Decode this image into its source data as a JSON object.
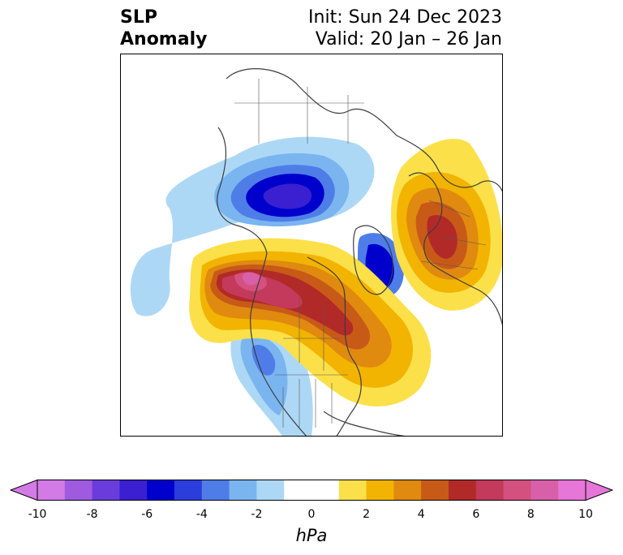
{
  "title": {
    "variable_line1": "SLP",
    "variable_line2": "Anomaly",
    "init": "Init: Sun 24 Dec 2023",
    "valid": "Valid: 20 Jan – 26 Jan"
  },
  "map": {
    "projection": "north-polar stereographic",
    "field": "sea level pressure anomaly",
    "colors": {
      "neg_1": "#add8f5",
      "neg_2": "#7ab5f0",
      "neg_3": "#4f7de8",
      "neg_4": "#2b3ddb",
      "neg_5": "#0000cd",
      "neg_6": "#3a20d0",
      "pos_1": "#fbe04a",
      "pos_2": "#f2b400",
      "pos_3": "#e08a10",
      "pos_4": "#c85a18",
      "pos_5": "#b22a28",
      "pos_6": "#c43a5c",
      "pos_7": "#d4507e",
      "pos_8": "#d860a8",
      "coast": "#3c3c3c"
    }
  },
  "colorbar": {
    "label": "hPa",
    "ticks": [
      "-10",
      "-8",
      "-6",
      "-4",
      "-2",
      "0",
      "2",
      "4",
      "6",
      "8",
      "10"
    ],
    "tick_values": [
      -10,
      -8,
      -6,
      -4,
      -2,
      0,
      2,
      4,
      6,
      8,
      10
    ],
    "bins": [
      {
        "from": -10,
        "to": -9,
        "color": "#d27ae6"
      },
      {
        "from": -9,
        "to": -8,
        "color": "#a05ae0"
      },
      {
        "from": -8,
        "to": -7,
        "color": "#6a3cdc"
      },
      {
        "from": -7,
        "to": -6,
        "color": "#3a20d0"
      },
      {
        "from": -6,
        "to": -5,
        "color": "#0000cd"
      },
      {
        "from": -5,
        "to": -4,
        "color": "#2b3ddb"
      },
      {
        "from": -4,
        "to": -3,
        "color": "#4f7de8"
      },
      {
        "from": -3,
        "to": -2,
        "color": "#7ab5f0"
      },
      {
        "from": -2,
        "to": -1,
        "color": "#add8f5"
      },
      {
        "from": -1,
        "to": 0,
        "color": "#ffffff"
      },
      {
        "from": 0,
        "to": 1,
        "color": "#ffffff"
      },
      {
        "from": 1,
        "to": 2,
        "color": "#fbe04a"
      },
      {
        "from": 2,
        "to": 3,
        "color": "#f2b400"
      },
      {
        "from": 3,
        "to": 4,
        "color": "#e08a10"
      },
      {
        "from": 4,
        "to": 5,
        "color": "#c85a18"
      },
      {
        "from": 5,
        "to": 6,
        "color": "#b22a28"
      },
      {
        "from": 6,
        "to": 7,
        "color": "#c43a5c"
      },
      {
        "from": 7,
        "to": 8,
        "color": "#d4507e"
      },
      {
        "from": 8,
        "to": 9,
        "color": "#d860a8"
      },
      {
        "from": 9,
        "to": 10,
        "color": "#e676d8"
      }
    ],
    "extend_low_color": "#d27ae6",
    "extend_high_color": "#e676d8"
  }
}
